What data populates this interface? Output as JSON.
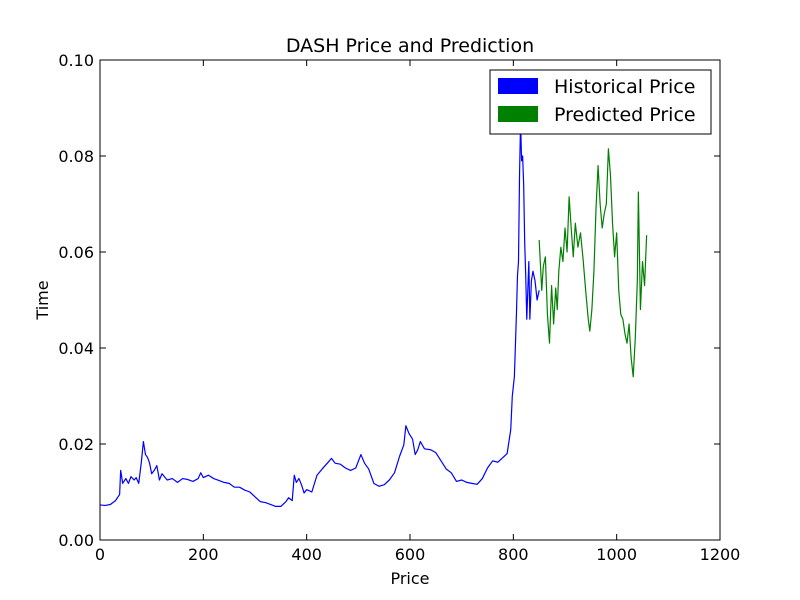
{
  "chart_data": {
    "type": "line",
    "title": "DASH Price and Prediction",
    "xlabel": "Price",
    "ylabel": "Time",
    "xlim": [
      0,
      1200
    ],
    "ylim": [
      0,
      0.1
    ],
    "x_ticks": [
      0,
      200,
      400,
      600,
      800,
      1000,
      1200
    ],
    "x_tick_labels": [
      "0",
      "200",
      "400",
      "600",
      "800",
      "1000",
      "1200"
    ],
    "y_ticks": [
      0,
      0.02,
      0.04,
      0.06,
      0.08,
      0.1
    ],
    "y_tick_labels": [
      "0.00",
      "0.02",
      "0.04",
      "0.06",
      "0.08",
      "0.10"
    ],
    "grid": false,
    "legend_position": "top-right",
    "series": [
      {
        "name": "Historical Price",
        "color": "#0000ff",
        "points": [
          [
            0,
            0.0073
          ],
          [
            10,
            0.0072
          ],
          [
            20,
            0.0074
          ],
          [
            30,
            0.0082
          ],
          [
            38,
            0.0095
          ],
          [
            40,
            0.0145
          ],
          [
            44,
            0.0118
          ],
          [
            50,
            0.0128
          ],
          [
            55,
            0.0118
          ],
          [
            60,
            0.0132
          ],
          [
            66,
            0.0125
          ],
          [
            70,
            0.013
          ],
          [
            75,
            0.0118
          ],
          [
            80,
            0.0162
          ],
          [
            84,
            0.0205
          ],
          [
            88,
            0.0178
          ],
          [
            92,
            0.0172
          ],
          [
            96,
            0.016
          ],
          [
            100,
            0.0138
          ],
          [
            105,
            0.0145
          ],
          [
            110,
            0.0155
          ],
          [
            115,
            0.0125
          ],
          [
            120,
            0.0138
          ],
          [
            130,
            0.0125
          ],
          [
            140,
            0.0128
          ],
          [
            150,
            0.012
          ],
          [
            160,
            0.0128
          ],
          [
            170,
            0.0126
          ],
          [
            180,
            0.0122
          ],
          [
            190,
            0.0128
          ],
          [
            195,
            0.014
          ],
          [
            200,
            0.013
          ],
          [
            210,
            0.0135
          ],
          [
            220,
            0.0128
          ],
          [
            230,
            0.0124
          ],
          [
            240,
            0.012
          ],
          [
            250,
            0.0118
          ],
          [
            260,
            0.011
          ],
          [
            270,
            0.011
          ],
          [
            280,
            0.0104
          ],
          [
            290,
            0.01
          ],
          [
            300,
            0.009
          ],
          [
            310,
            0.008
          ],
          [
            320,
            0.0078
          ],
          [
            330,
            0.0074
          ],
          [
            340,
            0.007
          ],
          [
            350,
            0.007
          ],
          [
            360,
            0.008
          ],
          [
            365,
            0.0088
          ],
          [
            372,
            0.0082
          ],
          [
            376,
            0.0135
          ],
          [
            380,
            0.012
          ],
          [
            385,
            0.0128
          ],
          [
            390,
            0.0115
          ],
          [
            395,
            0.0098
          ],
          [
            400,
            0.0105
          ],
          [
            410,
            0.01
          ],
          [
            420,
            0.0135
          ],
          [
            430,
            0.0148
          ],
          [
            440,
            0.016
          ],
          [
            448,
            0.017
          ],
          [
            455,
            0.016
          ],
          [
            465,
            0.0158
          ],
          [
            475,
            0.015
          ],
          [
            485,
            0.0145
          ],
          [
            495,
            0.015
          ],
          [
            505,
            0.0178
          ],
          [
            512,
            0.016
          ],
          [
            520,
            0.0148
          ],
          [
            530,
            0.0118
          ],
          [
            540,
            0.0112
          ],
          [
            550,
            0.0115
          ],
          [
            560,
            0.0125
          ],
          [
            570,
            0.014
          ],
          [
            580,
            0.0175
          ],
          [
            588,
            0.0198
          ],
          [
            592,
            0.0238
          ],
          [
            598,
            0.0222
          ],
          [
            605,
            0.021
          ],
          [
            610,
            0.0178
          ],
          [
            615,
            0.0188
          ],
          [
            620,
            0.0205
          ],
          [
            628,
            0.019
          ],
          [
            640,
            0.0188
          ],
          [
            650,
            0.0182
          ],
          [
            660,
            0.0165
          ],
          [
            670,
            0.0148
          ],
          [
            680,
            0.014
          ],
          [
            690,
            0.0122
          ],
          [
            700,
            0.0125
          ],
          [
            710,
            0.012
          ],
          [
            720,
            0.0118
          ],
          [
            730,
            0.0116
          ],
          [
            740,
            0.0128
          ],
          [
            750,
            0.015
          ],
          [
            760,
            0.0165
          ],
          [
            770,
            0.0162
          ],
          [
            780,
            0.0172
          ],
          [
            788,
            0.018
          ],
          [
            795,
            0.023
          ],
          [
            798,
            0.03
          ],
          [
            802,
            0.034
          ],
          [
            806,
            0.047
          ],
          [
            808,
            0.055
          ],
          [
            810,
            0.058
          ],
          [
            812,
            0.076
          ],
          [
            814,
            0.087
          ],
          [
            816,
            0.079
          ],
          [
            818,
            0.08
          ],
          [
            820,
            0.074
          ],
          [
            822,
            0.062
          ],
          [
            824,
            0.055
          ],
          [
            826,
            0.046
          ],
          [
            828,
            0.052
          ],
          [
            830,
            0.058
          ],
          [
            832,
            0.046
          ],
          [
            835,
            0.054
          ],
          [
            838,
            0.056
          ],
          [
            842,
            0.054
          ],
          [
            846,
            0.05
          ],
          [
            850,
            0.052
          ]
        ]
      },
      {
        "name": "Predicted Price",
        "color": "#008000",
        "points": [
          [
            850,
            0.0625
          ],
          [
            855,
            0.052
          ],
          [
            858,
            0.057
          ],
          [
            862,
            0.059
          ],
          [
            866,
            0.047
          ],
          [
            870,
            0.041
          ],
          [
            874,
            0.053
          ],
          [
            878,
            0.045
          ],
          [
            882,
            0.0525
          ],
          [
            885,
            0.048
          ],
          [
            888,
            0.056
          ],
          [
            892,
            0.061
          ],
          [
            896,
            0.058
          ],
          [
            900,
            0.065
          ],
          [
            904,
            0.06
          ],
          [
            908,
            0.0715
          ],
          [
            912,
            0.065
          ],
          [
            916,
            0.059
          ],
          [
            920,
            0.066
          ],
          [
            925,
            0.061
          ],
          [
            930,
            0.064
          ],
          [
            935,
            0.0585
          ],
          [
            940,
            0.052
          ],
          [
            945,
            0.046
          ],
          [
            948,
            0.0435
          ],
          [
            952,
            0.048
          ],
          [
            956,
            0.056
          ],
          [
            960,
            0.069
          ],
          [
            964,
            0.078
          ],
          [
            968,
            0.07
          ],
          [
            972,
            0.065
          ],
          [
            976,
            0.068
          ],
          [
            980,
            0.07
          ],
          [
            984,
            0.0815
          ],
          [
            988,
            0.076
          ],
          [
            992,
            0.066
          ],
          [
            996,
            0.059
          ],
          [
            1000,
            0.064
          ],
          [
            1004,
            0.052
          ],
          [
            1008,
            0.047
          ],
          [
            1012,
            0.046
          ],
          [
            1016,
            0.043
          ],
          [
            1020,
            0.041
          ],
          [
            1024,
            0.045
          ],
          [
            1028,
            0.038
          ],
          [
            1032,
            0.034
          ],
          [
            1036,
            0.042
          ],
          [
            1040,
            0.054
          ],
          [
            1042,
            0.0725
          ],
          [
            1046,
            0.048
          ],
          [
            1050,
            0.058
          ],
          [
            1054,
            0.053
          ],
          [
            1058,
            0.0635
          ]
        ]
      }
    ]
  }
}
